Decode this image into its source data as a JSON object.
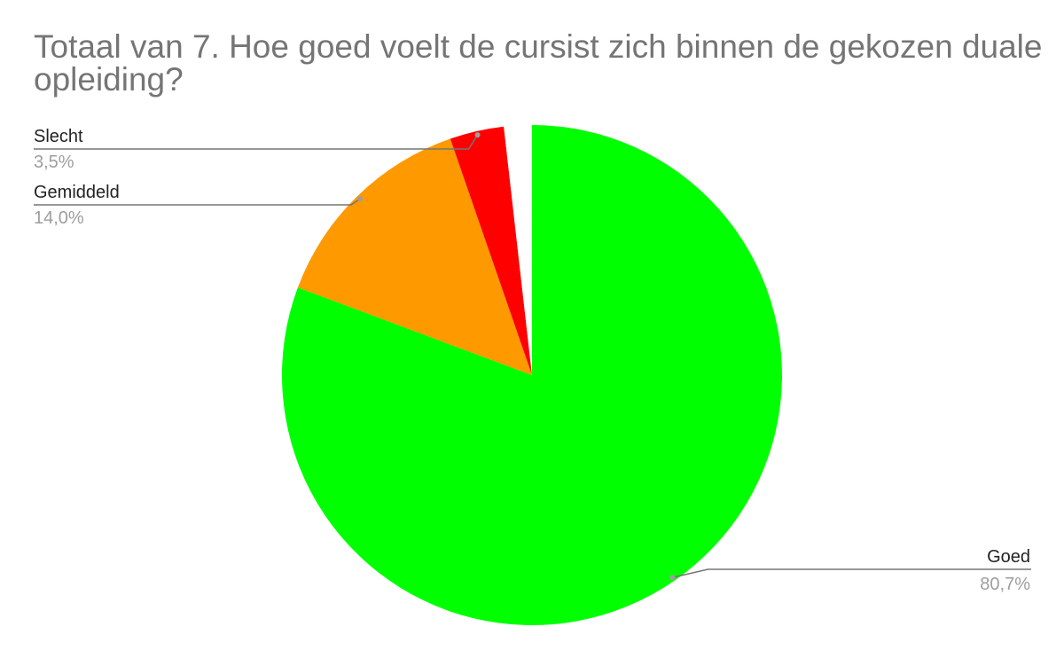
{
  "chart_data": {
    "type": "pie",
    "title": "Totaal van 7. Hoe goed voelt de cursist zich binnen de gekozen duale opleiding?",
    "slices": [
      {
        "name": "Goed",
        "value": 80.7,
        "label": "80,7%",
        "color": "#00ff00"
      },
      {
        "name": "Gemiddeld",
        "value": 14.0,
        "label": "14,0%",
        "color": "#ff9900"
      },
      {
        "name": "Slecht",
        "value": 3.5,
        "label": "3,5%",
        "color": "#ff0000"
      },
      {
        "name": "",
        "value": 1.8,
        "label": "",
        "color": "#ffffff"
      }
    ],
    "legend": "none",
    "label_style": "outside-with-leader-lines"
  }
}
